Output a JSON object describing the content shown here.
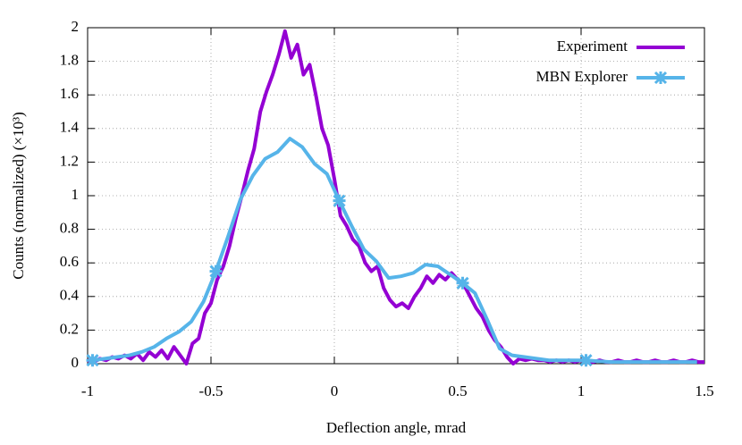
{
  "chart_data": {
    "type": "line",
    "xlabel": "Deflection angle, mrad",
    "ylabel": "Counts (normalized) (×10³)",
    "xlim": [
      -1,
      1.5
    ],
    "xticks": [
      -1,
      -0.5,
      0,
      0.5,
      1,
      1.5
    ],
    "ylim": [
      0,
      2
    ],
    "yticks": [
      0,
      0.2,
      0.4,
      0.6,
      0.8,
      1,
      1.2,
      1.4,
      1.6,
      1.8,
      2
    ],
    "grid": true,
    "legend": "top-right",
    "series": [
      {
        "name": "Experiment",
        "color": "#9400d3",
        "marker": "none",
        "x": [
          -1,
          -0.975,
          -0.95,
          -0.925,
          -0.9,
          -0.875,
          -0.85,
          -0.825,
          -0.8,
          -0.775,
          -0.75,
          -0.725,
          -0.7,
          -0.675,
          -0.65,
          -0.625,
          -0.6,
          -0.575,
          -0.55,
          -0.525,
          -0.5,
          -0.475,
          -0.45,
          -0.425,
          -0.4,
          -0.375,
          -0.35,
          -0.325,
          -0.3,
          -0.275,
          -0.25,
          -0.225,
          -0.2,
          -0.175,
          -0.15,
          -0.125,
          -0.1,
          -0.075,
          -0.05,
          -0.025,
          0,
          0.025,
          0.05,
          0.075,
          0.1,
          0.125,
          0.15,
          0.175,
          0.2,
          0.225,
          0.25,
          0.275,
          0.3,
          0.325,
          0.35,
          0.375,
          0.4,
          0.425,
          0.45,
          0.475,
          0.5,
          0.525,
          0.55,
          0.575,
          0.6,
          0.625,
          0.65,
          0.675,
          0.7,
          0.725,
          0.75,
          0.775,
          0.8,
          0.825,
          0.85,
          0.875,
          0.9,
          0.925,
          0.95,
          0.975,
          1,
          1.025,
          1.05,
          1.075,
          1.1,
          1.125,
          1.15,
          1.175,
          1.2,
          1.225,
          1.25,
          1.275,
          1.3,
          1.325,
          1.35,
          1.375,
          1.4,
          1.425,
          1.45,
          1.475,
          1.5
        ],
        "values": [
          0.02,
          0.01,
          0.03,
          0.02,
          0.04,
          0.03,
          0.05,
          0.03,
          0.06,
          0.02,
          0.07,
          0.04,
          0.08,
          0.03,
          0.1,
          0.05,
          0,
          0.12,
          0.15,
          0.3,
          0.36,
          0.5,
          0.58,
          0.7,
          0.86,
          1,
          1.15,
          1.28,
          1.5,
          1.62,
          1.72,
          1.84,
          1.98,
          1.82,
          1.9,
          1.72,
          1.78,
          1.6,
          1.4,
          1.3,
          1.1,
          0.88,
          0.82,
          0.74,
          0.7,
          0.6,
          0.55,
          0.58,
          0.45,
          0.38,
          0.34,
          0.36,
          0.33,
          0.4,
          0.45,
          0.52,
          0.48,
          0.53,
          0.5,
          0.54,
          0.5,
          0.47,
          0.4,
          0.33,
          0.28,
          0.2,
          0.14,
          0.1,
          0.04,
          0,
          0.03,
          0.02,
          0.03,
          0.02,
          0.02,
          0.01,
          0.02,
          0.01,
          0.02,
          0.01,
          0.02,
          0.01,
          0.01,
          0.02,
          0.01,
          0.01,
          0.02,
          0.01,
          0.01,
          0.02,
          0.01,
          0.01,
          0.02,
          0.01,
          0.01,
          0.02,
          0.01,
          0.01,
          0.02,
          0.01,
          0.01
        ]
      },
      {
        "name": "MBN Explorer",
        "color": "#56b4e9",
        "marker": "star",
        "x": [
          -0.98,
          -0.93,
          -0.88,
          -0.83,
          -0.78,
          -0.73,
          -0.68,
          -0.63,
          -0.58,
          -0.53,
          -0.48,
          -0.43,
          -0.38,
          -0.33,
          -0.28,
          -0.23,
          -0.18,
          -0.13,
          -0.08,
          -0.03,
          0.02,
          0.07,
          0.12,
          0.17,
          0.22,
          0.27,
          0.32,
          0.37,
          0.42,
          0.47,
          0.52,
          0.57,
          0.62,
          0.67,
          0.72,
          0.77,
          0.82,
          0.87,
          0.92,
          0.97,
          1.02,
          1.07,
          1.12,
          1.17,
          1.22,
          1.27,
          1.32,
          1.37,
          1.42,
          1.47
        ],
        "values": [
          0.02,
          0.03,
          0.04,
          0.05,
          0.07,
          0.1,
          0.15,
          0.19,
          0.25,
          0.37,
          0.55,
          0.76,
          0.98,
          1.12,
          1.22,
          1.26,
          1.34,
          1.29,
          1.19,
          1.13,
          0.97,
          0.82,
          0.68,
          0.61,
          0.51,
          0.52,
          0.54,
          0.59,
          0.58,
          0.53,
          0.48,
          0.42,
          0.26,
          0.09,
          0.05,
          0.04,
          0.03,
          0.02,
          0.02,
          0.02,
          0.02,
          0.015,
          0.01,
          0.01,
          0.01,
          0.01,
          0.01,
          0.01,
          0.01,
          0.01
        ]
      }
    ]
  }
}
